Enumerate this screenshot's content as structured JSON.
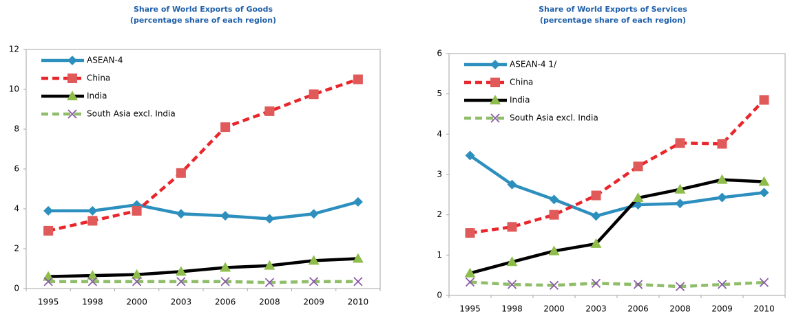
{
  "chart_data": [
    {
      "type": "line",
      "title": "Share of World Exports of Goods",
      "subtitle": "(percentage share of each region)",
      "categories": [
        "1995",
        "1998",
        "2000",
        "2003",
        "2006",
        "2008",
        "2009",
        "2010"
      ],
      "ylim": [
        0,
        12
      ],
      "yticks": [
        0,
        2,
        4,
        6,
        8,
        10,
        12
      ],
      "grid": false,
      "legend": "upper left",
      "series": [
        {
          "name": "ASEAN-4",
          "color": "#2c8fbe",
          "marker": "diamond",
          "marker_color": "#2c8fbe",
          "dash": false,
          "values": [
            3.9,
            3.9,
            4.2,
            3.75,
            3.65,
            3.5,
            3.75,
            4.35
          ]
        },
        {
          "name": "China",
          "color": "#e8262b",
          "marker": "square",
          "marker_color": "#e05a5a",
          "dash": true,
          "values": [
            2.9,
            3.4,
            3.9,
            5.8,
            8.1,
            8.9,
            9.75,
            10.5
          ]
        },
        {
          "name": "India",
          "color": "#000000",
          "marker": "triangle",
          "marker_color": "#8fbd4c",
          "dash": false,
          "values": [
            0.6,
            0.65,
            0.7,
            0.85,
            1.05,
            1.15,
            1.4,
            1.5
          ]
        },
        {
          "name": "South Asia excl. India",
          "color": "#8fbd6a",
          "marker": "x",
          "marker_color": "#8a5aa8",
          "dash": true,
          "values": [
            0.35,
            0.35,
            0.35,
            0.35,
            0.35,
            0.3,
            0.35,
            0.35
          ]
        }
      ]
    },
    {
      "type": "line",
      "title": "Share of World Exports of Services",
      "subtitle": "(percentage share of each region)",
      "categories": [
        "1995",
        "1998",
        "2000",
        "2003",
        "2006",
        "2008",
        "2009",
        "2010"
      ],
      "ylim": [
        0,
        6
      ],
      "yticks": [
        0,
        1,
        2,
        3,
        4,
        5,
        6
      ],
      "grid": false,
      "legend": "upper left",
      "series": [
        {
          "name": "ASEAN-4 1/",
          "color": "#2c8fbe",
          "marker": "diamond",
          "marker_color": "#2c8fbe",
          "dash": false,
          "values": [
            3.47,
            2.75,
            2.38,
            1.97,
            2.25,
            2.28,
            2.43,
            2.55
          ]
        },
        {
          "name": "China",
          "color": "#e8262b",
          "marker": "square",
          "marker_color": "#e05a5a",
          "dash": true,
          "values": [
            1.55,
            1.7,
            2.0,
            2.48,
            3.2,
            3.78,
            3.76,
            4.85
          ]
        },
        {
          "name": "India",
          "color": "#000000",
          "marker": "triangle",
          "marker_color": "#8fbd4c",
          "dash": false,
          "values": [
            0.55,
            0.83,
            1.1,
            1.28,
            2.42,
            2.63,
            2.87,
            2.82
          ]
        },
        {
          "name": "South Asia excl. India",
          "color": "#8fbd6a",
          "marker": "x",
          "marker_color": "#8a5aa8",
          "dash": true,
          "values": [
            0.33,
            0.27,
            0.25,
            0.3,
            0.27,
            0.22,
            0.27,
            0.32
          ]
        }
      ]
    }
  ]
}
